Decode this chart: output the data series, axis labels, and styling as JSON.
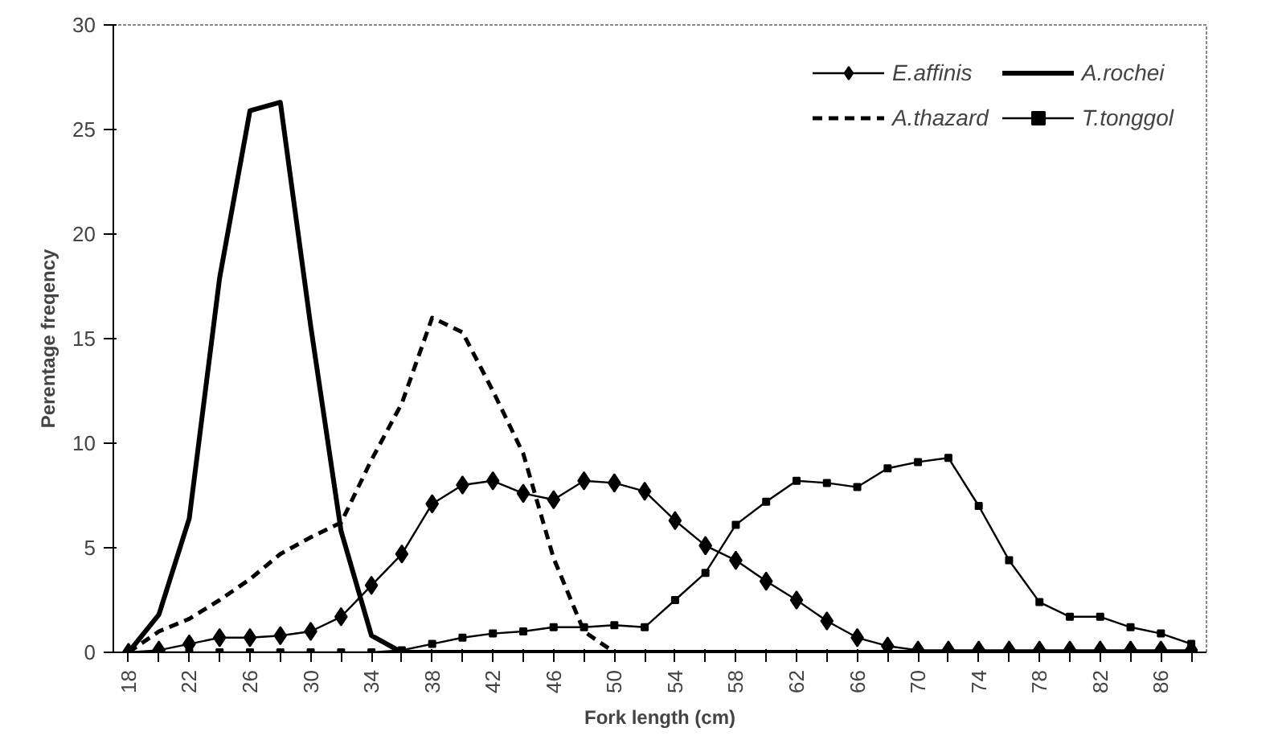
{
  "chart_data": {
    "type": "line",
    "xlabel": "Fork length (cm)",
    "ylabel": "Perentage freqency",
    "categories": [
      "18",
      null,
      "22",
      null,
      "26",
      null,
      "30",
      null,
      "34",
      null,
      "38",
      null,
      "42",
      null,
      "46",
      null,
      "50",
      null,
      "54",
      null,
      "58",
      null,
      "62",
      null,
      "66",
      null,
      "70",
      null,
      "74",
      null,
      "78",
      null,
      "82",
      null,
      "86",
      null
    ],
    "ylim": [
      0,
      30
    ],
    "yticks": [
      0,
      5,
      10,
      15,
      20,
      25,
      30
    ],
    "grid": false,
    "legend": "top right",
    "series": [
      {
        "name": "E.affinis",
        "color": "#000000",
        "marker": "diamond",
        "line_style": "solid",
        "values": [
          0,
          0.1,
          0.4,
          0.7,
          0.7,
          0.8,
          1.0,
          1.7,
          3.2,
          4.7,
          7.1,
          8.0,
          8.2,
          7.6,
          7.3,
          8.2,
          8.1,
          7.7,
          6.3,
          5.1,
          4.4,
          3.4,
          2.5,
          1.5,
          0.7,
          0.3,
          0.1,
          0.1,
          0.1,
          0.1,
          0.1,
          0.1,
          0.1,
          0.1,
          0.1,
          0.1
        ]
      },
      {
        "name": "A.thazard",
        "color": "#000000",
        "marker": "none",
        "line_style": "dashed",
        "values": [
          0,
          1.0,
          1.6,
          2.5,
          3.5,
          4.7,
          5.5,
          6.2,
          9.2,
          11.9,
          16.0,
          15.3,
          12.5,
          9.5,
          4.5,
          1.0,
          0,
          0,
          0,
          0,
          0,
          0,
          0,
          0,
          0,
          0,
          0,
          0,
          0,
          0,
          0,
          0,
          0,
          0,
          0,
          0
        ]
      },
      {
        "name": "A.rochei",
        "color": "#000000",
        "marker": "none",
        "line_style": "solid",
        "values": [
          0,
          1.8,
          6.4,
          17.9,
          25.9,
          26.3,
          15.6,
          5.8,
          0.8,
          0,
          0,
          0,
          0,
          0,
          0,
          0,
          0,
          0,
          0,
          0,
          0,
          0,
          0,
          0,
          0,
          0,
          0,
          0,
          0,
          0,
          0,
          0,
          0,
          0,
          0,
          0
        ]
      },
      {
        "name": "T.tonggol",
        "color": "#000000",
        "marker": "square",
        "line_style": "solid",
        "values": [
          0,
          0,
          0,
          0,
          0,
          0,
          0,
          0,
          0,
          0.1,
          0.4,
          0.7,
          0.9,
          1.0,
          1.2,
          1.2,
          1.3,
          1.2,
          2.5,
          3.8,
          6.1,
          7.2,
          8.2,
          8.1,
          7.9,
          8.8,
          9.1,
          9.3,
          7.0,
          4.4,
          2.4,
          1.7,
          1.7,
          1.2,
          0.9,
          0.4
        ]
      }
    ]
  }
}
